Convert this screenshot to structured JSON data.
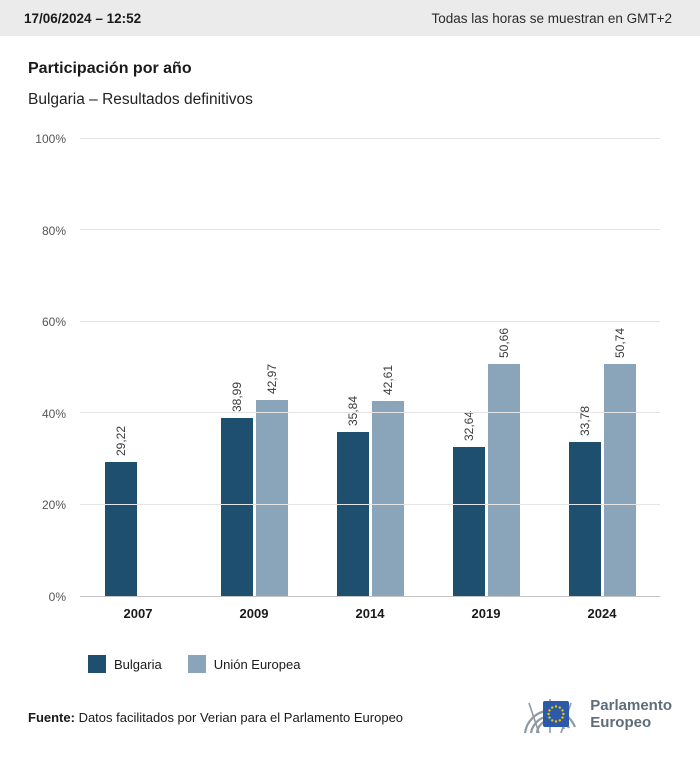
{
  "header": {
    "datetime": "17/06/2024 – 12:52",
    "timezone_note": "Todas las horas se muestran en GMT+2"
  },
  "title": "Participación por año",
  "subtitle": "Bulgaria – Resultados definitivos",
  "chart_data": {
    "type": "bar",
    "categories": [
      "2007",
      "2009",
      "2014",
      "2019",
      "2024"
    ],
    "series": [
      {
        "name": "Bulgaria",
        "color": "#1f4f6e",
        "values": [
          29.22,
          38.99,
          35.84,
          32.64,
          33.78
        ],
        "labels": [
          "29,22",
          "38,99",
          "35,84",
          "32,64",
          "33,78"
        ]
      },
      {
        "name": "Unión Europea",
        "color": "#8aa5ba",
        "values": [
          null,
          42.97,
          42.61,
          50.66,
          50.74
        ],
        "labels": [
          null,
          "42,97",
          "42,61",
          "50,66",
          "50,74"
        ]
      }
    ],
    "ylim": [
      0,
      100
    ],
    "yticks": [
      "0%",
      "20%",
      "40%",
      "60%",
      "80%",
      "100%"
    ],
    "grid": true,
    "legend_position": "bottom",
    "value_label_rotation": 90
  },
  "footer": {
    "source_label": "Fuente:",
    "source_text": " Datos facilitados por Verian para el Parlamento Europeo"
  },
  "logo": {
    "line1": "Parlamento",
    "line2": "Europeo"
  }
}
